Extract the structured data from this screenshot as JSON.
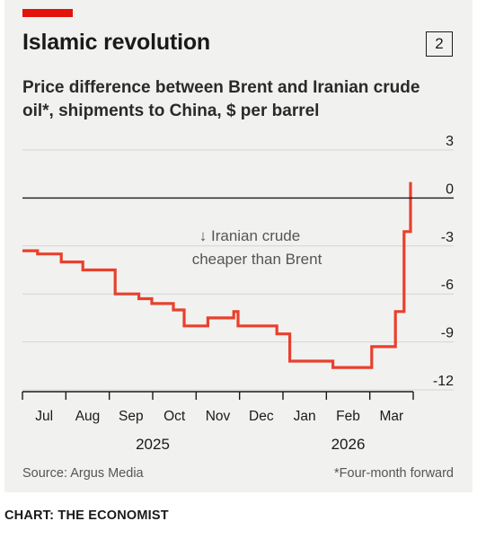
{
  "header": {
    "title": "Islamic revolution",
    "chart_number": "2",
    "subtitle": "Price difference between Brent and Iranian crude oil*, shipments to China, $ per barrel"
  },
  "annotation": {
    "line1": "↓ Iranian crude",
    "line2": "cheaper than Brent"
  },
  "source": "Source: Argus Media",
  "footnote": "*Four-month forward",
  "credit": "CHART: THE ECONOMIST",
  "colors": {
    "line": "#e8402e",
    "accent": "#e3120b",
    "grid": "#d4d4d4",
    "zero": "#1a1a1a",
    "panel": "#f1f2ef"
  },
  "chart_data": {
    "type": "line",
    "title": "Islamic revolution",
    "subtitle": "Price difference between Brent and Iranian crude oil*, shipments to China, $ per barrel",
    "xlabel": "",
    "ylabel": "",
    "ylim": [
      -12,
      3
    ],
    "yticks": [
      3,
      0,
      -3,
      -6,
      -9,
      -12
    ],
    "ytick_labels": [
      "3",
      "0",
      "-3",
      "-6",
      "-9",
      "-12"
    ],
    "xlim": [
      0,
      10
    ],
    "x_ticks": [
      0,
      1,
      2,
      3,
      4,
      5,
      6,
      7,
      8,
      9
    ],
    "x_month_labels": [
      {
        "label": "Jul",
        "x": 0.5
      },
      {
        "label": "Aug",
        "x": 1.5
      },
      {
        "label": "Sep",
        "x": 2.5
      },
      {
        "label": "Oct",
        "x": 3.5
      },
      {
        "label": "Nov",
        "x": 4.5
      },
      {
        "label": "Dec",
        "x": 5.5
      },
      {
        "label": "Jan",
        "x": 6.5
      },
      {
        "label": "Feb",
        "x": 7.5
      },
      {
        "label": "Mar",
        "x": 8.5
      }
    ],
    "x_year_labels": [
      {
        "label": "2025",
        "x": 3.0
      },
      {
        "label": "2026",
        "x": 7.5
      }
    ],
    "grid": true,
    "series": [
      {
        "step": true,
        "color": "#e8402e",
        "points": [
          [
            0.0,
            -3.3
          ],
          [
            0.35,
            -3.3
          ],
          [
            0.35,
            -3.5
          ],
          [
            0.9,
            -3.5
          ],
          [
            0.9,
            -4.0
          ],
          [
            1.4,
            -4.0
          ],
          [
            1.4,
            -4.5
          ],
          [
            2.15,
            -4.5
          ],
          [
            2.15,
            -6.0
          ],
          [
            2.7,
            -6.0
          ],
          [
            2.7,
            -6.3
          ],
          [
            3.0,
            -6.3
          ],
          [
            3.0,
            -6.6
          ],
          [
            3.5,
            -6.6
          ],
          [
            3.5,
            -7.0
          ],
          [
            3.75,
            -7.0
          ],
          [
            3.75,
            -8.0
          ],
          [
            4.3,
            -8.0
          ],
          [
            4.3,
            -7.5
          ],
          [
            4.9,
            -7.5
          ],
          [
            4.9,
            -7.1
          ],
          [
            5.0,
            -7.1
          ],
          [
            5.0,
            -8.0
          ],
          [
            5.9,
            -8.0
          ],
          [
            5.9,
            -8.5
          ],
          [
            6.2,
            -8.5
          ],
          [
            6.2,
            -10.2
          ],
          [
            7.2,
            -10.2
          ],
          [
            7.2,
            -10.6
          ],
          [
            8.1,
            -10.6
          ],
          [
            8.1,
            -9.3
          ],
          [
            8.65,
            -9.3
          ],
          [
            8.65,
            -7.1
          ],
          [
            8.85,
            -7.1
          ],
          [
            8.85,
            -2.1
          ],
          [
            9.0,
            -2.1
          ],
          [
            9.0,
            1.0
          ]
        ]
      }
    ]
  }
}
